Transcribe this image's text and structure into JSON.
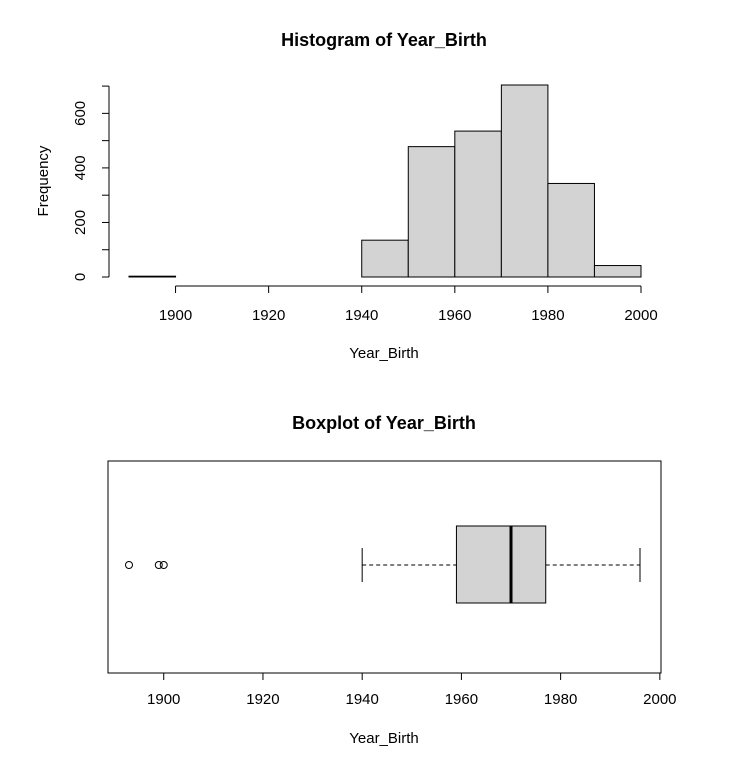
{
  "chart_data": [
    {
      "type": "histogram",
      "title": "Histogram of Year_Birth",
      "xlabel": "Year_Birth",
      "ylabel": "Frequency",
      "bins": [
        {
          "from": 1890,
          "to": 1900,
          "count": 3
        },
        {
          "from": 1900,
          "to": 1910,
          "count": 0
        },
        {
          "from": 1910,
          "to": 1920,
          "count": 0
        },
        {
          "from": 1920,
          "to": 1930,
          "count": 0
        },
        {
          "from": 1930,
          "to": 1940,
          "count": 0
        },
        {
          "from": 1940,
          "to": 1950,
          "count": 135
        },
        {
          "from": 1950,
          "to": 1960,
          "count": 478
        },
        {
          "from": 1960,
          "to": 1970,
          "count": 535
        },
        {
          "from": 1970,
          "to": 1980,
          "count": 704
        },
        {
          "from": 1980,
          "to": 1990,
          "count": 343
        },
        {
          "from": 1990,
          "to": 2000,
          "count": 42
        }
      ],
      "xticks": [
        1900,
        1920,
        1940,
        1960,
        1980,
        2000
      ],
      "yticks": [
        0,
        200,
        400,
        600
      ],
      "xlim": [
        1890,
        2000
      ],
      "ylim": [
        0,
        704
      ],
      "bar_color": "#d3d3d3"
    },
    {
      "type": "boxplot",
      "title": "Boxplot of Year_Birth",
      "xlabel": "Year_Birth",
      "orientation": "horizontal",
      "whisker_low": 1940,
      "q1": 1959,
      "median": 1970,
      "q3": 1977,
      "whisker_high": 1996,
      "outliers": [
        1893,
        1899,
        1900
      ],
      "xticks": [
        1900,
        1920,
        1940,
        1960,
        1980,
        2000
      ],
      "xlim": [
        1893,
        1996
      ],
      "box_color": "#d3d3d3"
    }
  ]
}
